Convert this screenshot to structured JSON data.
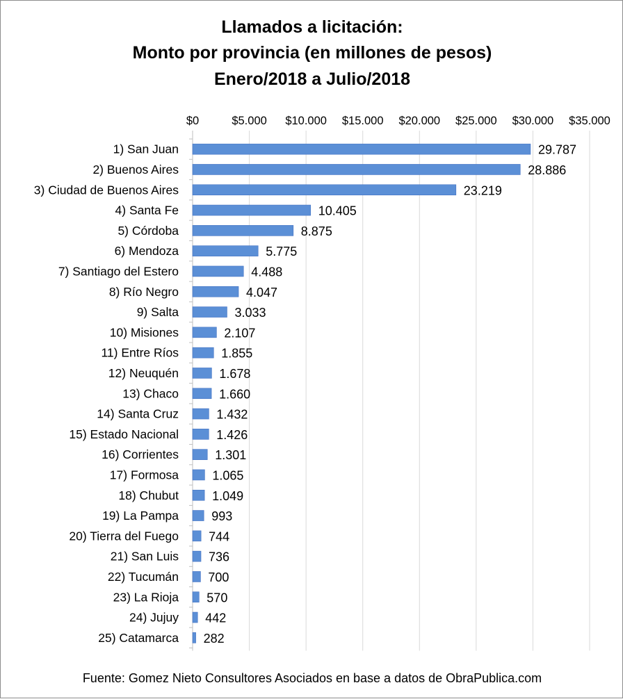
{
  "chart_data": {
    "type": "bar",
    "orientation": "horizontal",
    "title": [
      "Llamados a licitación:",
      "Monto por provincia (en millones de pesos)",
      "Enero/2018 a Julio/2018"
    ],
    "categories": [
      "1) San Juan",
      "2) Buenos Aires",
      "3) Ciudad de Buenos Aires",
      "4) Santa Fe",
      "5) Córdoba",
      "6) Mendoza",
      "7) Santiago del Estero",
      "8) Río Negro",
      "9) Salta",
      "10) Misiones",
      "11) Entre Ríos",
      "12) Neuquén",
      "13) Chaco",
      "14) Santa Cruz",
      "15) Estado Nacional",
      "16) Corrientes",
      "17) Formosa",
      "18) Chubut",
      "19) La Pampa",
      "20) Tierra del Fuego",
      "21) San Luis",
      "22) Tucumán",
      "23) La Rioja",
      "24) Jujuy",
      "25) Catamarca"
    ],
    "values": [
      29787,
      28886,
      23219,
      10405,
      8875,
      5775,
      4488,
      4047,
      3033,
      2107,
      1855,
      1678,
      1660,
      1432,
      1426,
      1301,
      1065,
      1049,
      993,
      744,
      736,
      700,
      570,
      442,
      282
    ],
    "data_labels": [
      "29.787",
      "28.886",
      "23.219",
      "10.405",
      "8.875",
      "5.775",
      "4.488",
      "4.047",
      "3.033",
      "2.107",
      "1.855",
      "1.678",
      "1.660",
      "1.432",
      "1.426",
      "1.301",
      "1.065",
      "1.049",
      "993",
      "744",
      "736",
      "700",
      "570",
      "442",
      "282"
    ],
    "xlim": [
      0,
      35000
    ],
    "x_ticks": [
      0,
      5000,
      10000,
      15000,
      20000,
      25000,
      30000,
      35000
    ],
    "x_tick_labels": [
      "$0",
      "$5.000",
      "$10.000",
      "$15.000",
      "$20.000",
      "$25.000",
      "$30.000",
      "$35.000"
    ],
    "x_axis_position": "top",
    "grid": true,
    "legend": "none",
    "bar_color": "#5b8fd6",
    "bar_outline_color": "#4472c4"
  },
  "source_note": "Fuente: Gomez Nieto Consultores Asociados en base a datos de ObraPublica.com"
}
